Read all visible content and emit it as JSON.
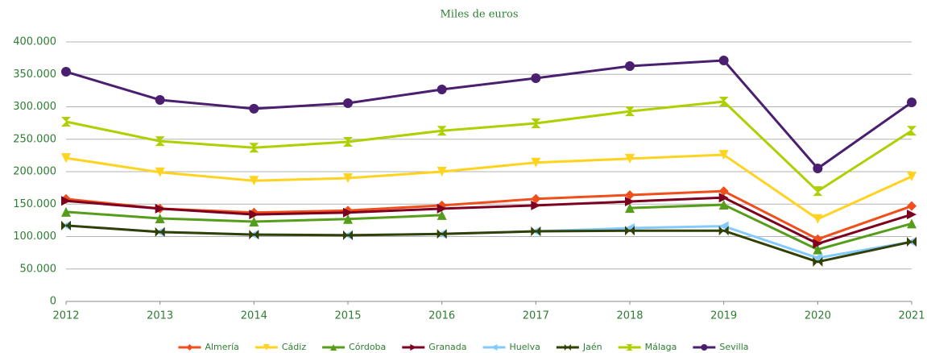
{
  "chart_data": {
    "type": "line",
    "title": "Miles de euros",
    "categories": [
      "2012",
      "2013",
      "2014",
      "2015",
      "2016",
      "2017",
      "2018",
      "2019",
      "2020",
      "2021"
    ],
    "ylim": [
      0,
      400000
    ],
    "yticks": [
      0,
      {
        "value": 50000,
        "label": "50.000"
      },
      {
        "value": 100000,
        "label": "100.000"
      },
      {
        "value": 150000,
        "label": "150.000"
      },
      {
        "value": 200000,
        "label": "200.000"
      },
      {
        "value": 250000,
        "label": "250.000"
      },
      {
        "value": 300000,
        "label": "300.000"
      },
      {
        "value": 350000,
        "label": "350.000"
      },
      {
        "value": 400000,
        "label": "400.000"
      }
    ],
    "grid": true,
    "legend": "bottom",
    "series": [
      {
        "name": "Almería",
        "color": "#f04e1b",
        "marker": "diamond",
        "values": [
          158000,
          143000,
          137000,
          140000,
          148000,
          158000,
          164000,
          170000,
          96000,
          147000
        ]
      },
      {
        "name": "Cádiz",
        "color": "#ffd320",
        "marker": "triangle-down",
        "values": [
          221000,
          199000,
          186000,
          190000,
          200000,
          214000,
          220000,
          226000,
          127000,
          192500
        ]
      },
      {
        "name": "Córdoba",
        "color": "#579d1c",
        "marker": "triangle-up",
        "values": [
          138000,
          128000,
          123000,
          127000,
          133000,
          null,
          144000,
          149000,
          80000,
          120000
        ]
      },
      {
        "name": "Granada",
        "color": "#7e0021",
        "marker": "triangle-right",
        "values": [
          155000,
          143000,
          134000,
          137000,
          143000,
          148000,
          154000,
          160000,
          89000,
          134000
        ]
      },
      {
        "name": "Huelva",
        "color": "#83caff",
        "marker": "triangle-left",
        "values": [
          117000,
          107000,
          103000,
          102000,
          104000,
          108000,
          113000,
          116000,
          67000,
          92000
        ]
      },
      {
        "name": "Jaén",
        "color": "#314004",
        "marker": "bowtie",
        "values": [
          117000,
          107000,
          103000,
          102000,
          104000,
          108000,
          109000,
          109000,
          61000,
          92000
        ]
      },
      {
        "name": "Málaga",
        "color": "#aecf00",
        "marker": "hourglass",
        "values": [
          277000,
          247000,
          237000,
          246000,
          263000,
          274500,
          293000,
          308000,
          170000,
          263000
        ]
      },
      {
        "name": "Sevilla",
        "color": "#4b1f6f",
        "marker": "circle",
        "values": [
          354000,
          310600,
          297000,
          305600,
          326700,
          344100,
          362700,
          371400,
          205000,
          306800
        ]
      }
    ]
  }
}
